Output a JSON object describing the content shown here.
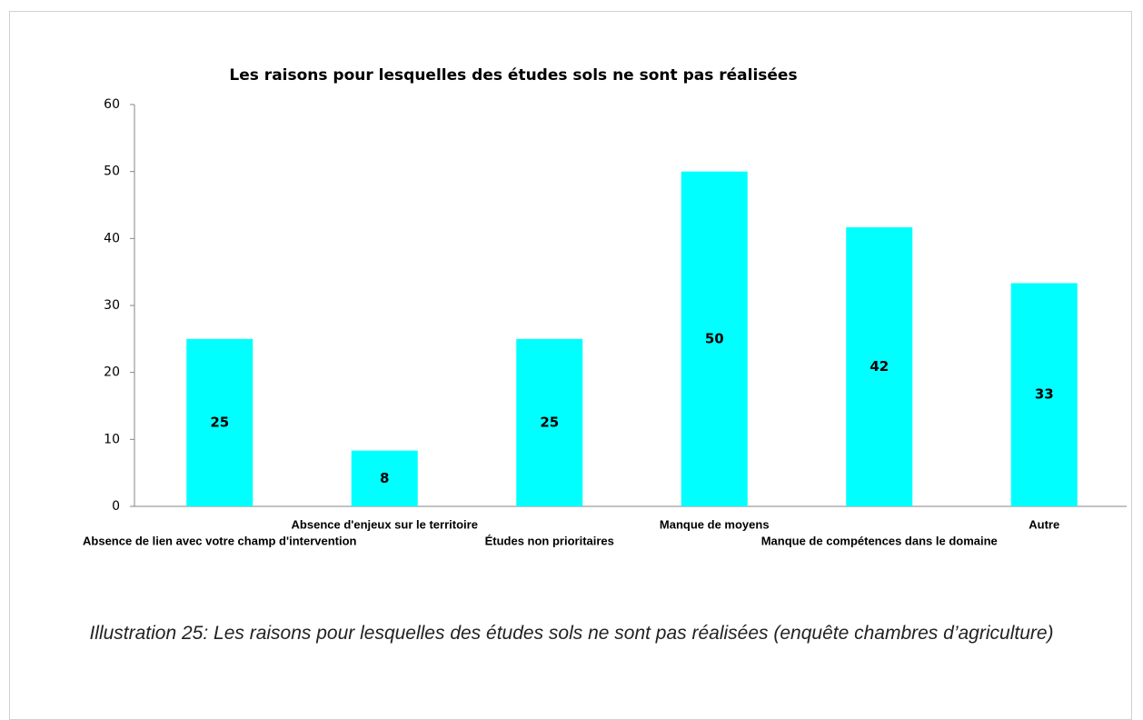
{
  "chart_data": {
    "type": "bar",
    "title": "Les raisons pour lesquelles des études sols ne sont pas réalisées",
    "categories": [
      "Absence de lien avec votre champ d'intervention",
      "Absence d'enjeux sur le territoire",
      "Études non prioritaires",
      "Manque de moyens",
      "Manque de compétences dans le domaine",
      "Autre"
    ],
    "values": [
      25,
      8.33,
      25,
      50,
      41.67,
      33.33
    ],
    "value_labels": [
      "25",
      "8",
      "25",
      "50",
      "42",
      "33"
    ],
    "color": "#00ffff",
    "ylim": [
      0,
      60
    ],
    "yticks": [
      0,
      10,
      20,
      30,
      40,
      50,
      60
    ],
    "grid": false,
    "caption": "Illustration 25: Les raisons pour lesquelles des études sols ne sont pas réalisées (enquête chambres d’agriculture)"
  }
}
